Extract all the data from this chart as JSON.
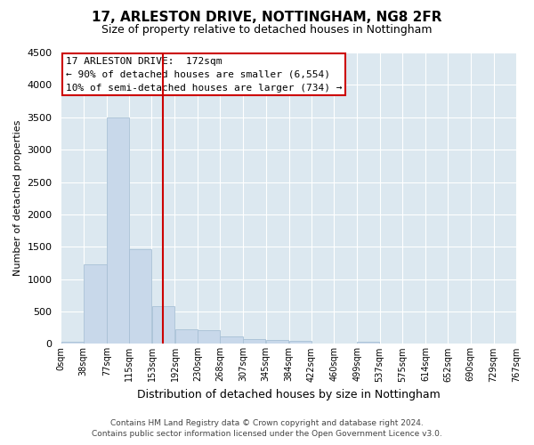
{
  "title": "17, ARLESTON DRIVE, NOTTINGHAM, NG8 2FR",
  "subtitle": "Size of property relative to detached houses in Nottingham",
  "xlabel": "Distribution of detached houses by size in Nottingham",
  "ylabel": "Number of detached properties",
  "footer_line1": "Contains HM Land Registry data © Crown copyright and database right 2024.",
  "footer_line2": "Contains public sector information licensed under the Open Government Licence v3.0.",
  "bar_edges": [
    0,
    38,
    77,
    115,
    153,
    192,
    230,
    268,
    307,
    345,
    384,
    422,
    460,
    499,
    537,
    575,
    614,
    652,
    690,
    729,
    767
  ],
  "bar_heights": [
    30,
    1230,
    3500,
    1460,
    580,
    220,
    210,
    110,
    80,
    60,
    40,
    0,
    0,
    30,
    0,
    0,
    0,
    0,
    0,
    0
  ],
  "bar_color": "#c8d8ea",
  "bar_edgecolor": "#a8c0d6",
  "vline_x": 172,
  "vline_color": "#cc0000",
  "ylim": [
    0,
    4500
  ],
  "yticks": [
    0,
    500,
    1000,
    1500,
    2000,
    2500,
    3000,
    3500,
    4000,
    4500
  ],
  "annotation_title": "17 ARLESTON DRIVE:  172sqm",
  "annotation_line1": "← 90% of detached houses are smaller (6,554)",
  "annotation_line2": "10% of semi-detached houses are larger (734) →",
  "annotation_box_facecolor": "#ffffff",
  "annotation_box_edgecolor": "#cc0000",
  "fig_bg_color": "#ffffff",
  "plot_bg_color": "#dce8f0"
}
